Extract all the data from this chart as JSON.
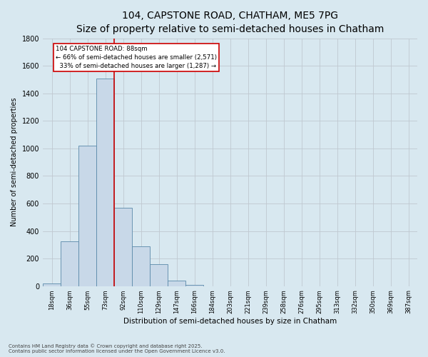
{
  "title_line1": "104, CAPSTONE ROAD, CHATHAM, ME5 7PG",
  "title_line2": "Size of property relative to semi-detached houses in Chatham",
  "xlabel": "Distribution of semi-detached houses by size in Chatham",
  "ylabel": "Number of semi-detached properties",
  "footer_line1": "Contains HM Land Registry data © Crown copyright and database right 2025.",
  "footer_line2": "Contains public sector information licensed under the Open Government Licence v3.0.",
  "bin_labels": [
    "18sqm",
    "36sqm",
    "55sqm",
    "73sqm",
    "92sqm",
    "110sqm",
    "129sqm",
    "147sqm",
    "166sqm",
    "184sqm",
    "203sqm",
    "221sqm",
    "239sqm",
    "258sqm",
    "276sqm",
    "295sqm",
    "313sqm",
    "332sqm",
    "350sqm",
    "369sqm",
    "387sqm"
  ],
  "bar_values": [
    20,
    325,
    1020,
    1510,
    570,
    290,
    160,
    40,
    10,
    0,
    0,
    0,
    0,
    0,
    0,
    0,
    0,
    0,
    0,
    0,
    0
  ],
  "bar_color": "#c8d8e8",
  "bar_edge_color": "#5a8aaa",
  "red_line_x": 3.5,
  "annotation_text": "104 CAPSTONE ROAD: 88sqm\n← 66% of semi-detached houses are smaller (2,571)\n  33% of semi-detached houses are larger (1,287) →",
  "annotation_box_facecolor": "#ffffff",
  "annotation_border_color": "#cc0000",
  "ylim": [
    0,
    1800
  ],
  "yticks": [
    0,
    200,
    400,
    600,
    800,
    1000,
    1200,
    1400,
    1600,
    1800
  ],
  "grid_color": "#c0c8d0",
  "background_color": "#d8e8f0",
  "plot_bg_color": "#d8e8f0",
  "title_fontsize": 10,
  "subtitle_fontsize": 8.5,
  "xlabel_fontsize": 7.5,
  "ylabel_fontsize": 7,
  "tick_fontsize": 6,
  "ytick_fontsize": 7,
  "annotation_fontsize": 6.2,
  "footer_fontsize": 5
}
